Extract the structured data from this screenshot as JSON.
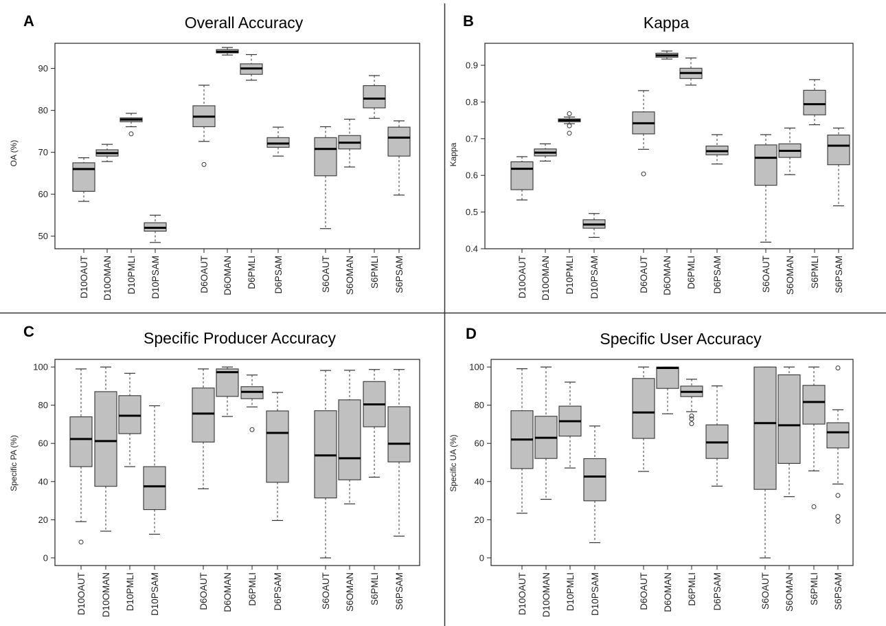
{
  "chart_data": [
    {
      "type": "box",
      "panel_label": "A",
      "title": "Overall Accuracy",
      "ylabel": "OA (%)",
      "ylim": [
        47,
        96
      ],
      "yticks": [
        50,
        60,
        70,
        80,
        90
      ],
      "groups": [
        [
          "D10OAUT",
          "D10OMAN",
          "D10PMLI",
          "D10PSAM"
        ],
        [
          "D6OAUT",
          "D6OMAN",
          "D6PMLI",
          "D6PSAM"
        ],
        [
          "S6OAUT",
          "S6OMAN",
          "S6PMLI",
          "S6PSAM"
        ]
      ],
      "boxes": [
        {
          "label": "D10OAUT",
          "min": 58.3,
          "q1": 60.7,
          "median": 66.0,
          "q3": 67.5,
          "max": 68.7,
          "outliers": []
        },
        {
          "label": "D10OMAN",
          "min": 67.8,
          "q1": 69.1,
          "median": 69.8,
          "q3": 70.6,
          "max": 71.9,
          "outliers": []
        },
        {
          "label": "D10PMLI",
          "min": 76.1,
          "q1": 77.3,
          "median": 77.8,
          "q3": 78.2,
          "max": 79.3,
          "outliers": [
            74.4
          ]
        },
        {
          "label": "D10PSAM",
          "min": 48.5,
          "q1": 51.2,
          "median": 52.0,
          "q3": 53.2,
          "max": 55.0,
          "outliers": []
        },
        {
          "label": "D6OAUT",
          "min": 72.6,
          "q1": 76.1,
          "median": 78.5,
          "q3": 81.1,
          "max": 86.0,
          "outliers": [
            67.1
          ]
        },
        {
          "label": "D6OMAN",
          "min": 93.2,
          "q1": 93.7,
          "median": 94.0,
          "q3": 94.5,
          "max": 95.0,
          "outliers": []
        },
        {
          "label": "D6PMLI",
          "min": 87.2,
          "q1": 88.6,
          "median": 90.0,
          "q3": 91.1,
          "max": 93.3,
          "outliers": []
        },
        {
          "label": "D6PSAM",
          "min": 69.1,
          "q1": 71.2,
          "median": 72.1,
          "q3": 73.5,
          "max": 76.0,
          "outliers": []
        },
        {
          "label": "S6OAUT",
          "min": 51.8,
          "q1": 64.4,
          "median": 70.8,
          "q3": 73.5,
          "max": 76.1,
          "outliers": []
        },
        {
          "label": "S6OMAN",
          "min": 66.5,
          "q1": 70.8,
          "median": 72.3,
          "q3": 74.0,
          "max": 77.9,
          "outliers": []
        },
        {
          "label": "S6PMLI",
          "min": 78.1,
          "q1": 80.6,
          "median": 82.8,
          "q3": 85.9,
          "max": 88.3,
          "outliers": []
        },
        {
          "label": "S6PSAM",
          "min": 59.8,
          "q1": 69.1,
          "median": 73.5,
          "q3": 76.0,
          "max": 77.5,
          "outliers": []
        }
      ]
    },
    {
      "type": "box",
      "panel_label": "B",
      "title": "Kappa",
      "ylabel": "Kappa",
      "ylim": [
        0.4,
        0.96
      ],
      "yticks": [
        0.4,
        0.5,
        0.6,
        0.7,
        0.8,
        0.9
      ],
      "groups": [
        [
          "D10OAUT",
          "D10OMAN",
          "D10PMLI",
          "D10PSAM"
        ],
        [
          "D6OAUT",
          "D6OMAN",
          "D6PMLI",
          "D6PSAM"
        ],
        [
          "S6OAUT",
          "S6OMAN",
          "S6PMLI",
          "S6PSAM"
        ]
      ],
      "boxes": [
        {
          "label": "D10OAUT",
          "min": 0.533,
          "q1": 0.561,
          "median": 0.618,
          "q3": 0.637,
          "max": 0.651,
          "outliers": []
        },
        {
          "label": "D10OMAN",
          "min": 0.639,
          "q1": 0.653,
          "median": 0.662,
          "q3": 0.672,
          "max": 0.686,
          "outliers": []
        },
        {
          "label": "D10PMLI",
          "min": 0.741,
          "q1": 0.746,
          "median": 0.75,
          "q3": 0.754,
          "max": 0.759,
          "outliers": [
            0.768,
            0.735,
            0.715
          ]
        },
        {
          "label": "D10PSAM",
          "min": 0.431,
          "q1": 0.456,
          "median": 0.466,
          "q3": 0.479,
          "max": 0.496,
          "outliers": []
        },
        {
          "label": "D6OAUT",
          "min": 0.671,
          "q1": 0.713,
          "median": 0.742,
          "q3": 0.773,
          "max": 0.831,
          "outliers": [
            0.604
          ]
        },
        {
          "label": "D6OMAN",
          "min": 0.917,
          "q1": 0.922,
          "median": 0.927,
          "q3": 0.933,
          "max": 0.939,
          "outliers": []
        },
        {
          "label": "D6PMLI",
          "min": 0.846,
          "q1": 0.864,
          "median": 0.879,
          "q3": 0.892,
          "max": 0.92,
          "outliers": []
        },
        {
          "label": "D6PSAM",
          "min": 0.631,
          "q1": 0.656,
          "median": 0.666,
          "q3": 0.68,
          "max": 0.711,
          "outliers": []
        },
        {
          "label": "S6OAUT",
          "min": 0.418,
          "q1": 0.573,
          "median": 0.648,
          "q3": 0.683,
          "max": 0.711,
          "outliers": []
        },
        {
          "label": "S6OMAN",
          "min": 0.602,
          "q1": 0.649,
          "median": 0.667,
          "q3": 0.686,
          "max": 0.729,
          "outliers": []
        },
        {
          "label": "S6PMLI",
          "min": 0.738,
          "q1": 0.765,
          "median": 0.794,
          "q3": 0.832,
          "max": 0.861,
          "outliers": []
        },
        {
          "label": "S6PSAM",
          "min": 0.517,
          "q1": 0.629,
          "median": 0.681,
          "q3": 0.71,
          "max": 0.729,
          "outliers": []
        }
      ]
    },
    {
      "type": "box",
      "panel_label": "C",
      "title": "Specific Producer Accuracy",
      "ylabel": "Specific PA (%)",
      "ylim": [
        -4,
        104
      ],
      "yticks": [
        0,
        20,
        40,
        60,
        80,
        100
      ],
      "groups": [
        [
          "D10OAUT",
          "D10OMAN",
          "D10PMLI",
          "D10PSAM"
        ],
        [
          "D6OAUT",
          "D6OMAN",
          "D6PMLI",
          "D6PSAM"
        ],
        [
          "S6OAUT",
          "S6OMAN",
          "S6PMLI",
          "S6PSAM"
        ]
      ],
      "boxes": [
        {
          "label": "D10OAUT",
          "min": 19,
          "q1": 47.8,
          "median": 62.3,
          "q3": 73.9,
          "max": 99,
          "outliers": [
            8.3
          ]
        },
        {
          "label": "D10OMAN",
          "min": 14,
          "q1": 37.5,
          "median": 61.2,
          "q3": 87.1,
          "max": 100,
          "outliers": []
        },
        {
          "label": "D10PMLI",
          "min": 47.8,
          "q1": 65.1,
          "median": 74.5,
          "q3": 85.0,
          "max": 96.7,
          "outliers": []
        },
        {
          "label": "D10PSAM",
          "min": 12.4,
          "q1": 25.3,
          "median": 37.5,
          "q3": 47.8,
          "max": 79.7,
          "outliers": []
        },
        {
          "label": "D6OAUT",
          "min": 36.2,
          "q1": 60.7,
          "median": 75.6,
          "q3": 89.0,
          "max": 99,
          "outliers": []
        },
        {
          "label": "D6OMAN",
          "min": 74.1,
          "q1": 84.6,
          "median": 97.3,
          "q3": 99.0,
          "max": 100,
          "outliers": []
        },
        {
          "label": "D6PMLI",
          "min": 79.1,
          "q1": 83.4,
          "median": 87.0,
          "q3": 89.7,
          "max": 95.8,
          "outliers": [
            67.2
          ]
        },
        {
          "label": "D6PSAM",
          "min": 19.6,
          "q1": 39.6,
          "median": 65.5,
          "q3": 77.0,
          "max": 86.7,
          "outliers": []
        },
        {
          "label": "S6OAUT",
          "min": 0,
          "q1": 31.4,
          "median": 53.7,
          "q3": 77.1,
          "max": 98.2,
          "outliers": []
        },
        {
          "label": "S6OMAN",
          "min": 28.3,
          "q1": 40.9,
          "median": 52.2,
          "q3": 82.8,
          "max": 98.3,
          "outliers": []
        },
        {
          "label": "S6PMLI",
          "min": 42.3,
          "q1": 68.7,
          "median": 80.4,
          "q3": 92.4,
          "max": 98.7,
          "outliers": []
        },
        {
          "label": "S6PSAM",
          "min": 11.4,
          "q1": 50.3,
          "median": 59.8,
          "q3": 79.2,
          "max": 98.7,
          "outliers": []
        }
      ]
    },
    {
      "type": "box",
      "panel_label": "D",
      "title": "Specific User Accuracy",
      "ylabel": "Specific UA (%)",
      "ylim": [
        -4,
        104
      ],
      "yticks": [
        0,
        20,
        40,
        60,
        80,
        100
      ],
      "groups": [
        [
          "D10OAUT",
          "D10OMAN",
          "D10PMLI",
          "D10PSAM"
        ],
        [
          "D6OAUT",
          "D6OMAN",
          "D6PMLI",
          "D6PSAM"
        ],
        [
          "S6OAUT",
          "S6OMAN",
          "S6PMLI",
          "S6PSAM"
        ]
      ],
      "boxes": [
        {
          "label": "D10OAUT",
          "min": 23.4,
          "q1": 46.8,
          "median": 62.0,
          "q3": 77.1,
          "max": 99.1,
          "outliers": []
        },
        {
          "label": "D10OMAN",
          "min": 30.7,
          "q1": 52.1,
          "median": 62.9,
          "q3": 74.2,
          "max": 100,
          "outliers": []
        },
        {
          "label": "D10PMLI",
          "min": 47.1,
          "q1": 63.8,
          "median": 71.6,
          "q3": 79.5,
          "max": 92.1,
          "outliers": []
        },
        {
          "label": "D10PSAM",
          "min": 8.0,
          "q1": 29.9,
          "median": 42.6,
          "q3": 52.0,
          "max": 69.1,
          "outliers": []
        },
        {
          "label": "D6OAUT",
          "min": 45.3,
          "q1": 62.6,
          "median": 76.2,
          "q3": 94.0,
          "max": 100,
          "outliers": []
        },
        {
          "label": "D6OMAN",
          "min": 75.5,
          "q1": 88.8,
          "median": 99.5,
          "q3": 100,
          "max": 100,
          "outliers": []
        },
        {
          "label": "D6PMLI",
          "min": 76.6,
          "q1": 84.5,
          "median": 87.0,
          "q3": 90.0,
          "max": 93.6,
          "outliers": [
            74.4,
            72.8,
            70.3
          ]
        },
        {
          "label": "D6PSAM",
          "min": 37.6,
          "q1": 52.1,
          "median": 60.5,
          "q3": 69.7,
          "max": 90.1,
          "outliers": []
        },
        {
          "label": "S6OAUT",
          "min": 0,
          "q1": 35.9,
          "median": 70.6,
          "q3": 100,
          "max": 100,
          "outliers": []
        },
        {
          "label": "S6OMAN",
          "min": 32.1,
          "q1": 49.5,
          "median": 69.5,
          "q3": 95.9,
          "max": 100,
          "outliers": []
        },
        {
          "label": "S6PMLI",
          "min": 45.6,
          "q1": 70.1,
          "median": 81.7,
          "q3": 90.4,
          "max": 100,
          "outliers": [
            26.8
          ]
        },
        {
          "label": "S6PSAM",
          "min": 38.7,
          "q1": 57.6,
          "median": 65.8,
          "q3": 70.8,
          "max": 77.6,
          "outliers": [
            99.5,
            32.7,
            21.7,
            19.2
          ]
        }
      ]
    }
  ],
  "colors": {
    "box_fill": "#c0c0c0",
    "box_stroke": "#333333",
    "divider": "#333333"
  }
}
